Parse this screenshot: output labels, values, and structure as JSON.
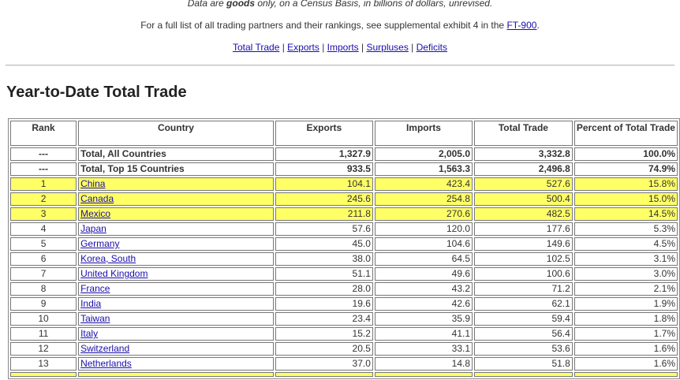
{
  "intro": {
    "line1_pre": "Data are ",
    "line1_bold": "goods",
    "line1_post": " only, on a Census Basis, in billions of dollars, unrevised.",
    "line2_pre": "For a full list of all trading partners and their rankings, see supplemental exhibit 4 in the ",
    "line2_link": "FT-900",
    "line2_post": "."
  },
  "nav": {
    "sep": " | ",
    "links": [
      "Total Trade",
      "Exports",
      "Imports",
      "Surpluses",
      "Deficits"
    ]
  },
  "section_title": "Year-to-Date Total Trade",
  "table": {
    "headers": [
      "Rank",
      "Country",
      "Exports",
      "Imports",
      "Total Trade",
      "Percent of Total Trade"
    ],
    "summary_rows": [
      {
        "rank": "---",
        "country": "Total, All Countries",
        "exports": "1,327.9",
        "imports": "2,005.0",
        "total": "3,332.8",
        "pct": "100.0%"
      },
      {
        "rank": "---",
        "country": "Total, Top 15 Countries",
        "exports": "933.5",
        "imports": "1,563.3",
        "total": "2,496.8",
        "pct": "74.9%"
      }
    ],
    "rows": [
      {
        "rank": "1",
        "country": "China",
        "exports": "104.1",
        "imports": "423.4",
        "total": "527.6",
        "pct": "15.8%",
        "highlight": true
      },
      {
        "rank": "2",
        "country": "Canada",
        "exports": "245.6",
        "imports": "254.8",
        "total": "500.4",
        "pct": "15.0%",
        "highlight": true
      },
      {
        "rank": "3",
        "country": "Mexico",
        "exports": "211.8",
        "imports": "270.6",
        "total": "482.5",
        "pct": "14.5%",
        "highlight": true
      },
      {
        "rank": "4",
        "country": "Japan",
        "exports": "57.6",
        "imports": "120.0",
        "total": "177.6",
        "pct": "5.3%",
        "highlight": false
      },
      {
        "rank": "5",
        "country": "Germany",
        "exports": "45.0",
        "imports": "104.6",
        "total": "149.6",
        "pct": "4.5%",
        "highlight": false
      },
      {
        "rank": "6",
        "country": "Korea, South",
        "exports": "38.0",
        "imports": "64.5",
        "total": "102.5",
        "pct": "3.1%",
        "highlight": false
      },
      {
        "rank": "7",
        "country": "United Kingdom",
        "exports": "51.1",
        "imports": "49.6",
        "total": "100.6",
        "pct": "3.0%",
        "highlight": false
      },
      {
        "rank": "8",
        "country": "France",
        "exports": "28.0",
        "imports": "43.2",
        "total": "71.2",
        "pct": "2.1%",
        "highlight": false
      },
      {
        "rank": "9",
        "country": "India",
        "exports": "19.6",
        "imports": "42.6",
        "total": "62.1",
        "pct": "1.9%",
        "highlight": false
      },
      {
        "rank": "10",
        "country": "Taiwan",
        "exports": "23.4",
        "imports": "35.9",
        "total": "59.4",
        "pct": "1.8%",
        "highlight": false
      },
      {
        "rank": "11",
        "country": "Italy",
        "exports": "15.2",
        "imports": "41.1",
        "total": "56.4",
        "pct": "1.7%",
        "highlight": false
      },
      {
        "rank": "12",
        "country": "Switzerland",
        "exports": "20.5",
        "imports": "33.1",
        "total": "53.6",
        "pct": "1.6%",
        "highlight": false
      },
      {
        "rank": "13",
        "country": "Netherlands",
        "exports": "37.0",
        "imports": "14.8",
        "total": "51.8",
        "pct": "1.6%",
        "highlight": false
      }
    ]
  },
  "colors": {
    "highlight": "#ffff66",
    "link": "#1a0dab"
  }
}
